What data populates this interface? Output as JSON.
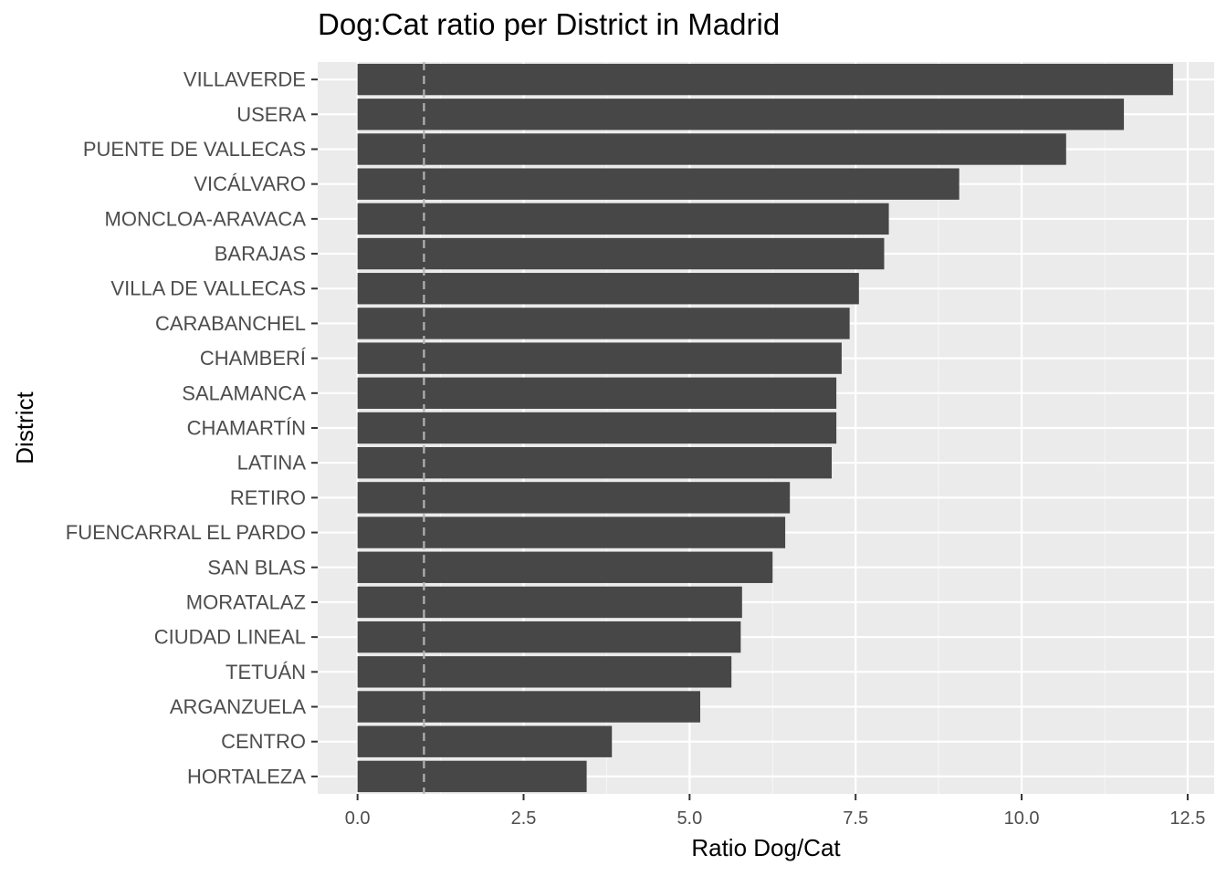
{
  "chart_data": {
    "type": "bar",
    "orientation": "horizontal",
    "title": "Dog:Cat ratio per District in Madrid",
    "xlabel": "Ratio Dog/Cat",
    "ylabel": "District",
    "xlim": [
      -0.6,
      12.9
    ],
    "xticks": [
      0,
      2.5,
      5,
      7.5,
      10,
      12.5
    ],
    "xtick_labels": [
      "0.0",
      "2.5",
      "5.0",
      "7.5",
      "10.0",
      "12.5"
    ],
    "reference_line": {
      "x": 1,
      "style": "dashed"
    },
    "grid": true,
    "legend": "none",
    "categories": [
      "VILLAVERDE",
      "USERA",
      "PUENTE DE VALLECAS",
      "VICÁLVARO",
      "MONCLOA-ARAVACA",
      "BARAJAS",
      "VILLA DE VALLECAS",
      "CARABANCHEL",
      "CHAMBERÍ",
      "SALAMANCA",
      "CHAMARTÍN",
      "LATINA",
      "RETIRO",
      "FUENCARRAL EL PARDO",
      "SAN BLAS",
      "MORATALAZ",
      "CIUDAD LINEAL",
      "TETUÁN",
      "ARGANZUELA",
      "CENTRO",
      "HORTALEZA"
    ],
    "values": [
      12.28,
      11.54,
      10.67,
      9.06,
      8.0,
      7.93,
      7.55,
      7.41,
      7.29,
      7.21,
      7.21,
      7.14,
      6.51,
      6.44,
      6.25,
      5.79,
      5.77,
      5.63,
      5.16,
      3.83,
      3.45
    ]
  },
  "colors": {
    "panel": "#ebebeb",
    "grid_major": "#ffffff",
    "bar": "#474747",
    "reference_line": "#b3b3b3",
    "tick": "#333333"
  }
}
